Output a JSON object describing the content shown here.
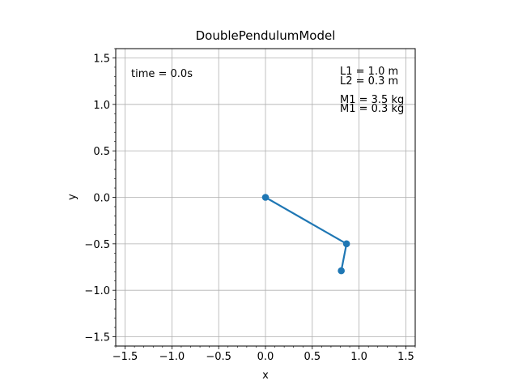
{
  "chart_data": {
    "type": "line",
    "title": "DoublePendulumModel",
    "xlabel": "x",
    "ylabel": "y",
    "xlim": [
      -1.6,
      1.6
    ],
    "ylim": [
      -1.6,
      1.6
    ],
    "xticks": [
      -1.5,
      -1.0,
      -0.5,
      0.0,
      0.5,
      1.0,
      1.5
    ],
    "yticks": [
      -1.5,
      -1.0,
      -0.5,
      0.0,
      0.5,
      1.0,
      1.5
    ],
    "xtick_labels": [
      "−1.5",
      "−1.0",
      "−0.5",
      "0.0",
      "0.5",
      "1.0",
      "1.5"
    ],
    "ytick_labels": [
      "−1.5",
      "−1.0",
      "−0.5",
      "0.0",
      "0.5",
      "1.0",
      "1.5"
    ],
    "grid": true,
    "minor_ticks": true,
    "series": [
      {
        "color": "#1f77b4",
        "marker": "circle",
        "x": [
          0.0,
          0.866,
          0.81
        ],
        "y": [
          0.0,
          -0.5,
          -0.79
        ]
      }
    ],
    "annotations": {
      "time": "time = 0.0s",
      "l1": "L1 = 1.0 m",
      "l2": "L2 = 0.3 m",
      "m1": "M1 = 3.5 kg",
      "m2": "M1 = 0.3 kg"
    }
  }
}
